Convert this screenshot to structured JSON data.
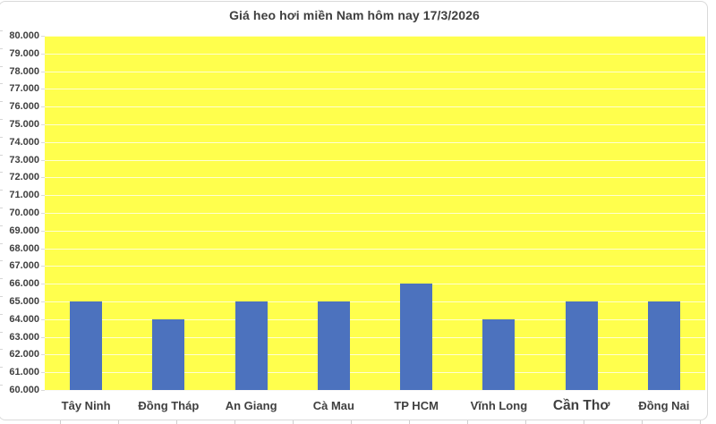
{
  "chart_data": {
    "type": "bar",
    "title": "Giá heo hơi miền Nam hôm nay 17/3/2026",
    "categories": [
      "Tây Ninh",
      "Đồng Tháp",
      "An Giang",
      "Cà Mau",
      "TP HCM",
      "Vĩnh Long",
      "Cần Thơ",
      "Đồng Nai"
    ],
    "values": [
      65000,
      64000,
      65000,
      65000,
      66000,
      64000,
      65000,
      65000
    ],
    "xlabel": "",
    "ylabel": "",
    "ylim": [
      60000,
      80000
    ],
    "ytick_step": 1000,
    "ytick_labels": [
      "80.000",
      "79.000",
      "78.000",
      "77.000",
      "76.000",
      "75.000",
      "74.000",
      "73.000",
      "72.000",
      "71.000",
      "70.000",
      "69.000",
      "68.000",
      "67.000",
      "66.000",
      "65.000",
      "64.000",
      "63.000",
      "62.000",
      "61.000",
      "60.000"
    ],
    "grid": true,
    "legend": false,
    "colors": {
      "bar": "#4C72BE",
      "plot_background": "#FFFF4D",
      "gridline": "rgba(255,255,255,0.75)",
      "axis_text": "#404040",
      "title_text": "#3F3F3F",
      "chart_border": "#D9D9D9",
      "background": "#FFFFFF"
    }
  }
}
